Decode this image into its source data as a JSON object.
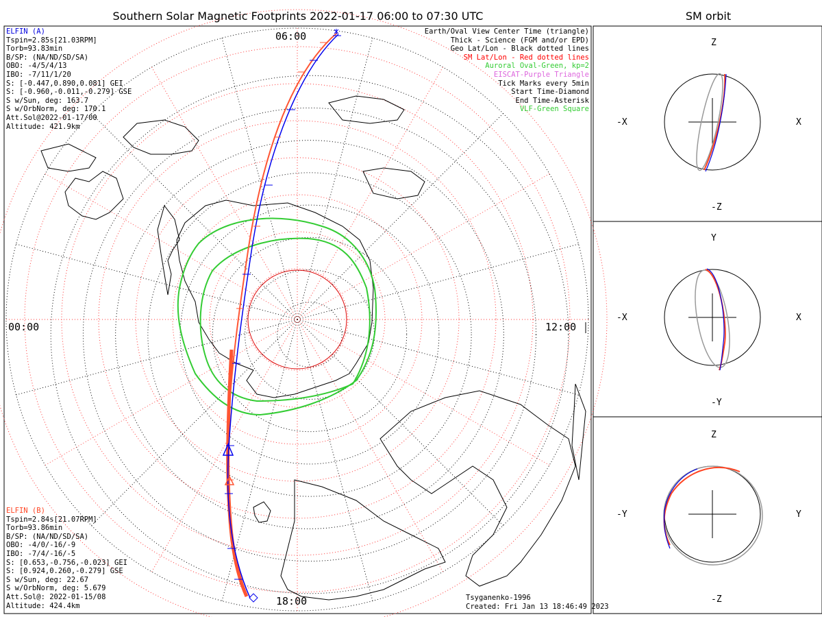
{
  "header": {
    "title": "Southern Solar Magnetic Footprints 2022-01-17 06:00 to 07:30 UTC",
    "orbit_title": "SM orbit"
  },
  "elfin_a": {
    "name": "ELFIN (A)",
    "color": "#0000dd",
    "lines": [
      "Tspin=2.85s[21.03RPM]",
      "Torb=93.83min",
      "B/SP: (NA/ND/SD/SA)",
      "OBO: -4/5/4/13",
      "IBO: -7/11/1/20",
      "S: [-0.447,0.890,0.081] GEI",
      "S: [-0.960,-0.011,-0.279] GSE",
      "S w/Sun, deg: 163.7",
      "S w/OrbNorm, deg: 170.1",
      "Att.Sol@2022-01-17/00",
      "Altitude: 421.9km"
    ]
  },
  "elfin_b": {
    "name": "ELFIN (B)",
    "color": "#ff4422",
    "lines": [
      "Tspin=2.84s[21.07RPM]",
      "Torb=93.86min",
      "B/SP: (NA/ND/SD/SA)",
      "OBO: -4/0/-16/-9",
      "IBO: -7/4/-16/-5",
      "S: [0.653,-0.756,-0.023] GEI",
      "S: [0.924,0.260,-0.279] GSE",
      "S w/Sun, deg: 22.67",
      "S w/OrbNorm, deg: 5.679",
      "Att.Sol@: 2022-01-15/08",
      "Altitude: 424.4km"
    ]
  },
  "legend": [
    {
      "text": "Earth/Oval View Center Time (triangle)",
      "color": "#000000"
    },
    {
      "text": "Thick - Science (FGM and/or EPD)",
      "color": "#000000"
    },
    {
      "text": "Geo Lat/Lon - Black dotted lines",
      "color": "#000000"
    },
    {
      "text": "SM Lat/Lon - Red dotted lines",
      "color": "#ff0000"
    },
    {
      "text": "Auroral Oval-Green, kp=2",
      "color": "#33cc33"
    },
    {
      "text": "EISCAT-Purple Triangle",
      "color": "#dd66dd"
    },
    {
      "text": "Tick Marks every 5min",
      "color": "#000000"
    },
    {
      "text": "Start Time-Diamond",
      "color": "#000000"
    },
    {
      "text": "End Time-Asterisk",
      "color": "#000000"
    },
    {
      "text": "VLF-Green Square",
      "color": "#33cc33"
    }
  ],
  "clock_labels": {
    "top": "06:00",
    "left": "00:00",
    "right": "12:00",
    "bottom": "18:00"
  },
  "credits": {
    "model": "Tsyganenko-1996",
    "created": "Created: Fri Jan 13 18:46:49 2023"
  },
  "orbit_panels": [
    {
      "top": "Z",
      "bottom": "-Z",
      "left": "-X",
      "right": "X"
    },
    {
      "top": "Y",
      "bottom": "-Y",
      "left": "-X",
      "right": "X"
    },
    {
      "top": "Z",
      "bottom": "-Z",
      "left": "-Y",
      "right": "Y"
    }
  ]
}
